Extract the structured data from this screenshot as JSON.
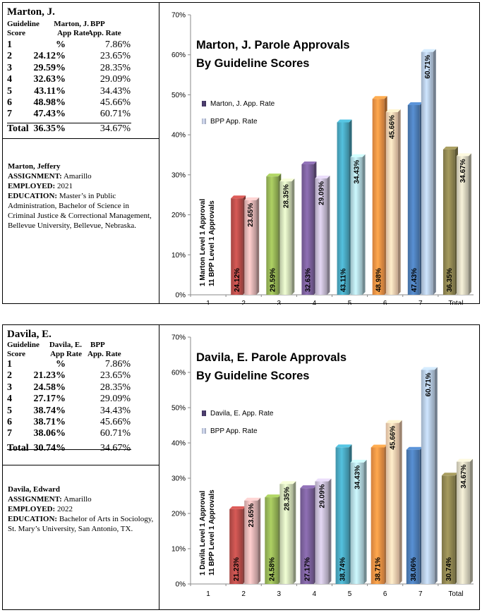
{
  "panels": [
    {
      "name": "Marton, J.",
      "col_head_1": [
        "Guideline",
        "Score"
      ],
      "col_head_2": [
        "Marton, J.",
        "App Rate"
      ],
      "col_head_3": [
        "BPP",
        "App. Rate"
      ],
      "rows": [
        {
          "g": "1",
          "p": "%",
          "b": "7.86%"
        },
        {
          "g": "2",
          "p": "24.12%",
          "b": "23.65%"
        },
        {
          "g": "3",
          "p": "29.59%",
          "b": "28.35%"
        },
        {
          "g": "4",
          "p": "32.63%",
          "b": "29.09%"
        },
        {
          "g": "5",
          "p": "43.11%",
          "b": "34.43%"
        },
        {
          "g": "6",
          "p": "48.98%",
          "b": "45.66%"
        },
        {
          "g": "7",
          "p": "47.43%",
          "b": "60.71%"
        },
        {
          "g": "Total",
          "p": "36.35%",
          "b": "34.67%"
        }
      ],
      "bio": {
        "full_name": "Marton, Jeffery",
        "assignment_label": "ASSIGNMENT:",
        "assignment": "Amarillo",
        "employed_label": "EMPLOYED:",
        "employed": "2021",
        "education_label": "EDUCATION:",
        "education": "Master’s in Public Administration, Bachelor of Science in Criminal Justice & Correctional Management, Bellevue University, Bellevue, Nebraska."
      },
      "chart_data": {
        "type": "bar",
        "title": [
          "Marton, J. Parole Approvals",
          "By Guideline Scores"
        ],
        "categories": [
          "1",
          "2",
          "3",
          "4",
          "5",
          "6",
          "7",
          "Total"
        ],
        "series": [
          {
            "name": "Marton, J. App. Rate",
            "values": [
              null,
              24.12,
              29.59,
              32.63,
              43.11,
              48.98,
              47.43,
              36.35
            ],
            "labels": [
              "",
              "24.12%",
              "29.59%",
              "32.63%",
              "43.11%",
              "48.98%",
              "47.43%",
              "36.35%"
            ]
          },
          {
            "name": "BPP App. Rate",
            "values": [
              null,
              23.65,
              28.35,
              29.09,
              34.43,
              45.66,
              60.71,
              34.67
            ],
            "labels": [
              "",
              "23.65%",
              "28.35%",
              "29.09%",
              "34.43%",
              "45.66%",
              "60.71%",
              "34.67%"
            ]
          }
        ],
        "ylim": [
          0,
          70
        ],
        "yticks": [
          "0%",
          "10%",
          "20%",
          "30%",
          "40%",
          "50%",
          "60%",
          "70%"
        ],
        "note": [
          "1 Marton Level 1 Approval",
          "11 BPP Level 1 Approvals"
        ],
        "legend": "left-middle",
        "colors": {
          "primary": [
            "#c0504d",
            "#9bbb59",
            "#8064a2",
            "#4bacc6",
            "#f79646",
            "#4f81bd",
            "#948a54"
          ],
          "secondary": [
            "#e6b9b8",
            "#d7e4bd",
            "#ccc1da",
            "#b7dee8",
            "#fcd5b5",
            "#b9cde5",
            "#ddd9c3"
          ],
          "legend": [
            "#4a3c6b",
            "#c3cbe0"
          ]
        }
      }
    },
    {
      "name": "Davila, E.",
      "col_head_1": [
        "Guideline",
        "Score"
      ],
      "col_head_2": [
        "Davila, E.",
        "App Rate"
      ],
      "col_head_3": [
        "BPP",
        "App. Rate"
      ],
      "rows": [
        {
          "g": "1",
          "p": "%",
          "b": "7.86%"
        },
        {
          "g": "2",
          "p": "21.23%",
          "b": "23.65%"
        },
        {
          "g": "3",
          "p": "24.58%",
          "b": "28.35%"
        },
        {
          "g": "4",
          "p": "27.17%",
          "b": "29.09%"
        },
        {
          "g": "5",
          "p": "38.74%",
          "b": "34.43%"
        },
        {
          "g": "6",
          "p": "38.71%",
          "b": "45.66%"
        },
        {
          "g": "7",
          "p": "38.06%",
          "b": "60.71%"
        },
        {
          "g": "Total",
          "p": "30.74%",
          "b": "34.67%"
        }
      ],
      "bio": {
        "full_name": "Davila, Edward",
        "assignment_label": "ASSIGNMENT:",
        "assignment": "Amarillo",
        "employed_label": "EMPLOYED:",
        "employed": "2022",
        "education_label": "EDUCATION:",
        "education": "Bachelor of Arts in Sociology, St. Mary’s University, San Antonio, TX."
      },
      "chart_data": {
        "type": "bar",
        "title": [
          "Davila, E. Parole Approvals",
          "By Guideline Scores"
        ],
        "categories": [
          "1",
          "2",
          "3",
          "4",
          "5",
          "6",
          "7",
          "Total"
        ],
        "series": [
          {
            "name": "Davila, E. App. Rate",
            "values": [
              null,
              21.23,
              24.58,
              27.17,
              38.74,
              38.71,
              38.06,
              30.74
            ],
            "labels": [
              "",
              "21.23%",
              "24.58%",
              "27.17%",
              "38.74%",
              "38.71%",
              "38.06%",
              "30.74%"
            ]
          },
          {
            "name": "BPP App. Rate",
            "values": [
              null,
              23.65,
              28.35,
              29.09,
              34.43,
              45.66,
              60.71,
              34.67
            ],
            "labels": [
              "",
              "23.65%",
              "28.35%",
              "29.09%",
              "34.43%",
              "45.66%",
              "60.71%",
              "34.67%"
            ]
          }
        ],
        "ylim": [
          0,
          70
        ],
        "yticks": [
          "0%",
          "10%",
          "20%",
          "30%",
          "40%",
          "50%",
          "60%",
          "70%"
        ],
        "note": [
          "1 Davila Level 1 Approval",
          "11 BPP Level 1 Approvals"
        ],
        "legend": "left-middle",
        "colors": {
          "primary": [
            "#c0504d",
            "#9bbb59",
            "#8064a2",
            "#4bacc6",
            "#f79646",
            "#4f81bd",
            "#948a54"
          ],
          "secondary": [
            "#e6b9b8",
            "#d7e4bd",
            "#ccc1da",
            "#b7dee8",
            "#fcd5b5",
            "#b9cde5",
            "#ddd9c3"
          ],
          "legend": [
            "#4a3c6b",
            "#c3cbe0"
          ]
        }
      }
    }
  ]
}
